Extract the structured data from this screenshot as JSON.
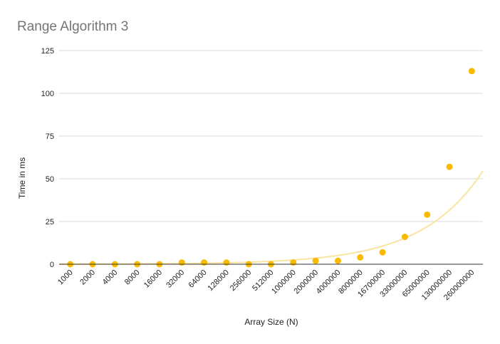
{
  "chart_data": {
    "type": "scatter",
    "title": "Range Algorithm 3",
    "xlabel": "Array Size (N)",
    "ylabel": "Time in ms",
    "ylim": [
      0,
      125
    ],
    "yticks": [
      0,
      25,
      50,
      75,
      100,
      125
    ],
    "grid": true,
    "categories": [
      "1000",
      "2000",
      "4000",
      "8000",
      "16000",
      "32000",
      "64000",
      "128000",
      "256000",
      "512000",
      "1000000",
      "2000000",
      "4000000",
      "8000000",
      "16700000",
      "33000000",
      "65000000",
      "130000000",
      "260000000"
    ],
    "series": [
      {
        "values": [
          0,
          0,
          0,
          0,
          0,
          1,
          1,
          1,
          0,
          0,
          1,
          2,
          2,
          4,
          7,
          16,
          29,
          57,
          113
        ]
      }
    ],
    "trendline": {
      "type": "exponential"
    },
    "colors": {
      "points": "#f9bb02",
      "trendline": "#fbe3a0",
      "grid": "#d9d9d9",
      "axis": "#333333"
    }
  }
}
